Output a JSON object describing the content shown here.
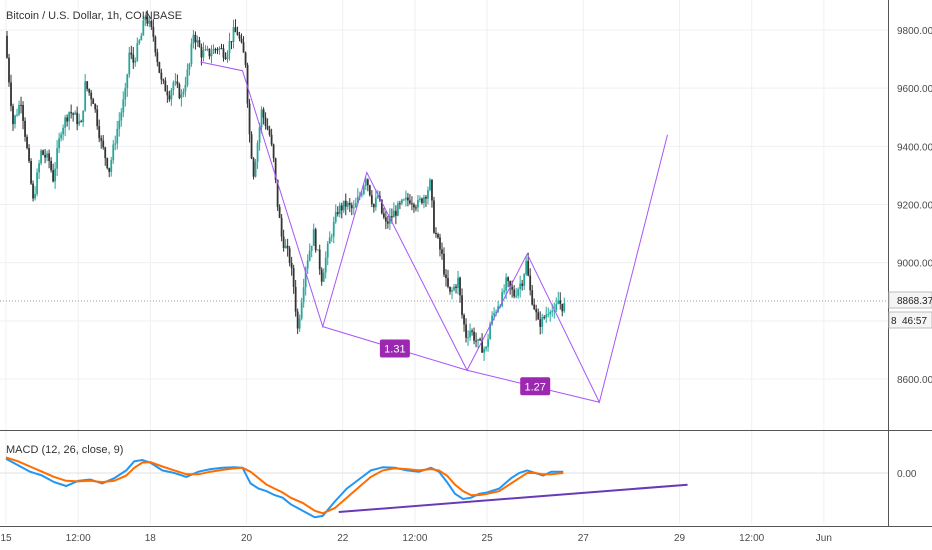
{
  "title": "Bitcoin / U.S. Dollar, 1h, COINBASE",
  "indicator_label": "MACD (12, 26, close, 9)",
  "last_price_label": "8868.37",
  "countdown_label": "46:57",
  "countdown_prefix": "8",
  "macd_zero_label": "0.00",
  "colors": {
    "up": "#26a69a",
    "down": "#333333",
    "pattern": "#a855f7",
    "badge": "#9c27b0",
    "macd_line": "#2196f3",
    "signal_line": "#ff6d00",
    "divergence": "#673ab7",
    "grid": "#eef0f3",
    "axis": "#555555"
  },
  "chart_data": [
    {
      "type": "candlestick",
      "title": "Bitcoin / U.S. Dollar, 1h, COINBASE",
      "y_ticks": [
        "8600.00",
        "8800.00",
        "9000.00",
        "9200.00",
        "9400.00",
        "9600.00",
        "9800.00"
      ],
      "y_tick_values": [
        8600,
        8800,
        9000,
        9200,
        9400,
        9600,
        9800
      ],
      "ylim": [
        8430,
        9900
      ],
      "x_ticks": [
        "15",
        "12:00",
        "18",
        "20",
        "22",
        "12:00",
        "25",
        "27",
        "29",
        "12:00",
        "Jun"
      ],
      "x_tick_hours": [
        0,
        36,
        72,
        120,
        168,
        204,
        240,
        288,
        336,
        372,
        408
      ],
      "xlim_hours": [
        0,
        440
      ],
      "grid": true,
      "last_price": 8868.37,
      "price_path": [
        [
          0,
          9780
        ],
        [
          4,
          9480
        ],
        [
          8,
          9560
        ],
        [
          12,
          9330
        ],
        [
          14,
          9210
        ],
        [
          18,
          9380
        ],
        [
          22,
          9350
        ],
        [
          24,
          9290
        ],
        [
          28,
          9460
        ],
        [
          32,
          9520
        ],
        [
          34,
          9510
        ],
        [
          38,
          9470
        ],
        [
          40,
          9610
        ],
        [
          44,
          9560
        ],
        [
          48,
          9410
        ],
        [
          52,
          9320
        ],
        [
          56,
          9460
        ],
        [
          60,
          9580
        ],
        [
          62,
          9720
        ],
        [
          64,
          9690
        ],
        [
          68,
          9780
        ],
        [
          70,
          9850
        ],
        [
          74,
          9780
        ],
        [
          78,
          9620
        ],
        [
          82,
          9580
        ],
        [
          84,
          9620
        ],
        [
          88,
          9570
        ],
        [
          92,
          9680
        ],
        [
          94,
          9790
        ],
        [
          98,
          9720
        ],
        [
          102,
          9720
        ],
        [
          106,
          9740
        ],
        [
          110,
          9720
        ],
        [
          114,
          9790
        ],
        [
          116,
          9790
        ],
        [
          120,
          9690
        ],
        [
          122,
          9440
        ],
        [
          124,
          9310
        ],
        [
          128,
          9520
        ],
        [
          132,
          9440
        ],
        [
          134,
          9350
        ],
        [
          136,
          9200
        ],
        [
          138,
          9090
        ],
        [
          142,
          9010
        ],
        [
          144,
          8920
        ],
        [
          146,
          8770
        ],
        [
          150,
          8990
        ],
        [
          154,
          9100
        ],
        [
          158,
          8950
        ],
        [
          162,
          9080
        ],
        [
          166,
          9180
        ],
        [
          170,
          9200
        ],
        [
          174,
          9180
        ],
        [
          178,
          9250
        ],
        [
          180,
          9300
        ],
        [
          184,
          9190
        ],
        [
          186,
          9230
        ],
        [
          188,
          9170
        ],
        [
          190,
          9130
        ],
        [
          194,
          9170
        ],
        [
          198,
          9200
        ],
        [
          202,
          9220
        ],
        [
          206,
          9200
        ],
        [
          210,
          9240
        ],
        [
          212,
          9270
        ],
        [
          214,
          9120
        ],
        [
          218,
          9020
        ],
        [
          220,
          8930
        ],
        [
          222,
          8890
        ],
        [
          226,
          8940
        ],
        [
          228,
          8820
        ],
        [
          230,
          8750
        ],
        [
          232,
          8770
        ],
        [
          236,
          8720
        ],
        [
          240,
          8700
        ],
        [
          242,
          8790
        ],
        [
          246,
          8860
        ],
        [
          248,
          8880
        ],
        [
          250,
          8930
        ],
        [
          254,
          8890
        ],
        [
          258,
          8940
        ],
        [
          260,
          9000
        ],
        [
          262,
          8900
        ],
        [
          264,
          8850
        ],
        [
          266,
          8790
        ],
        [
          268,
          8800
        ],
        [
          272,
          8850
        ],
        [
          274,
          8820
        ],
        [
          276,
          8870
        ],
        [
          278,
          8850
        ]
      ],
      "pattern_points": [
        {
          "hour": 97,
          "price": 9690
        },
        {
          "hour": 118,
          "price": 9660
        },
        {
          "hour": 158,
          "price": 8780
        },
        {
          "hour": 180,
          "price": 9310
        },
        {
          "hour": 230,
          "price": 8630
        },
        {
          "hour": 260,
          "price": 9030
        },
        {
          "hour": 296,
          "price": 8520
        },
        {
          "hour": 330,
          "price": 9440
        }
      ],
      "support_line": [
        {
          "hour": 158,
          "price": 8780
        },
        {
          "hour": 230,
          "price": 8630
        },
        {
          "hour": 296,
          "price": 8520
        }
      ],
      "annotations": [
        {
          "text": "1.31",
          "hour": 194,
          "price": 8705
        },
        {
          "text": "1.27",
          "hour": 264,
          "price": 8575
        }
      ]
    },
    {
      "type": "line",
      "title": "MACD (12, 26, close, 9)",
      "y_ticks": [
        "0.00"
      ],
      "series": [
        {
          "color": "#2196f3",
          "x": [
            0,
            6,
            12,
            18,
            24,
            30,
            36,
            42,
            48,
            54,
            60,
            64,
            68,
            72,
            78,
            84,
            90,
            96,
            102,
            108,
            114,
            118,
            122,
            126,
            130,
            134,
            138,
            142,
            148,
            154,
            158,
            164,
            170,
            176,
            182,
            188,
            194,
            200,
            206,
            212,
            216,
            220,
            224,
            228,
            232,
            236,
            240,
            246,
            252,
            256,
            260,
            264,
            268,
            272,
            278
          ],
          "y": [
            55,
            30,
            5,
            -10,
            -35,
            -50,
            -30,
            -25,
            -40,
            -20,
            10,
            45,
            50,
            40,
            10,
            0,
            -15,
            5,
            15,
            20,
            22,
            20,
            -40,
            -60,
            -70,
            -85,
            -95,
            -120,
            -145,
            -170,
            -165,
            -110,
            -60,
            -25,
            10,
            22,
            20,
            10,
            5,
            20,
            5,
            -35,
            -80,
            -100,
            -95,
            -80,
            -75,
            -60,
            -20,
            0,
            10,
            0,
            -10,
            5,
            5
          ]
        },
        {
          "color": "#ff6d00",
          "x": [
            0,
            6,
            12,
            18,
            24,
            30,
            36,
            42,
            48,
            54,
            60,
            64,
            68,
            72,
            78,
            84,
            90,
            96,
            102,
            108,
            114,
            118,
            122,
            126,
            130,
            134,
            138,
            142,
            148,
            154,
            158,
            164,
            170,
            176,
            182,
            188,
            194,
            200,
            206,
            212,
            216,
            220,
            224,
            228,
            232,
            236,
            240,
            246,
            252,
            256,
            260,
            264,
            268,
            272,
            278
          ],
          "y": [
            60,
            45,
            25,
            5,
            -15,
            -30,
            -32,
            -30,
            -35,
            -30,
            -10,
            20,
            40,
            42,
            25,
            10,
            -5,
            -5,
            5,
            12,
            18,
            20,
            5,
            -20,
            -45,
            -60,
            -75,
            -95,
            -115,
            -145,
            -155,
            -135,
            -95,
            -55,
            -15,
            10,
            18,
            15,
            10,
            15,
            10,
            -10,
            -45,
            -70,
            -85,
            -85,
            -80,
            -70,
            -40,
            -20,
            0,
            0,
            -5,
            -5,
            0
          ]
        }
      ],
      "divergence_line": [
        {
          "hour": 166,
          "value": -150
        },
        {
          "hour": 340,
          "value": -45
        }
      ]
    }
  ]
}
